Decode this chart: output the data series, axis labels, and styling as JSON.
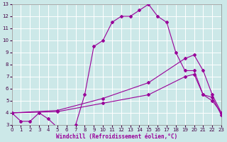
{
  "xlabel": "Windchill (Refroidissement éolien,°C)",
  "xlim": [
    0,
    23
  ],
  "ylim": [
    3,
    13
  ],
  "yticks": [
    3,
    4,
    5,
    6,
    7,
    8,
    9,
    10,
    11,
    12,
    13
  ],
  "xticks": [
    0,
    1,
    2,
    3,
    4,
    5,
    6,
    7,
    8,
    9,
    10,
    11,
    12,
    13,
    14,
    15,
    16,
    17,
    18,
    19,
    20,
    21,
    22,
    23
  ],
  "bg_color": "#cce8e8",
  "grid_color": "#ffffff",
  "line_color": "#990099",
  "line1_x": [
    0,
    1,
    2,
    3,
    4,
    5,
    6,
    7,
    8,
    9,
    10,
    11,
    12,
    13,
    14,
    15,
    16,
    17,
    18,
    19,
    20,
    21,
    22,
    23
  ],
  "line1_y": [
    4.0,
    3.3,
    3.3,
    4.0,
    3.5,
    2.8,
    2.8,
    3.0,
    5.5,
    9.5,
    10.0,
    11.5,
    12.0,
    12.0,
    12.5,
    13.0,
    12.0,
    11.5,
    9.0,
    7.5,
    7.5,
    5.5,
    5.0,
    4.0
  ],
  "line2_x": [
    0,
    5,
    10,
    15,
    19,
    20,
    21,
    22,
    23
  ],
  "line2_y": [
    4.0,
    4.2,
    5.2,
    6.5,
    8.5,
    8.8,
    7.5,
    5.5,
    4.0
  ],
  "line3_x": [
    0,
    5,
    10,
    15,
    19,
    20,
    21,
    22,
    23
  ],
  "line3_y": [
    4.0,
    4.1,
    4.8,
    5.5,
    7.0,
    7.2,
    5.5,
    5.3,
    3.8
  ]
}
